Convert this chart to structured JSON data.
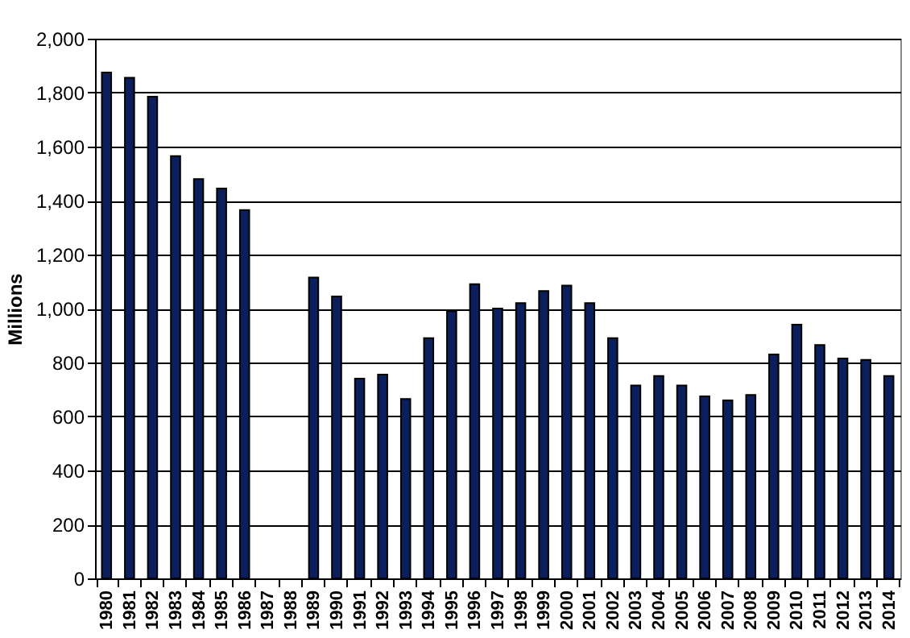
{
  "chart_data": {
    "type": "bar",
    "ylabel": "Millions",
    "categories": [
      "1980",
      "1981",
      "1982",
      "1983",
      "1984",
      "1985",
      "1986",
      "1987",
      "1988",
      "1989",
      "1990",
      "1991",
      "1992",
      "1993",
      "1994",
      "1995",
      "1996",
      "1997",
      "1998",
      "1999",
      "2000",
      "2001",
      "2002",
      "2003",
      "2004",
      "2005",
      "2006",
      "2007",
      "2008",
      "2009",
      "2010",
      "2011",
      "2012",
      "2013",
      "2014"
    ],
    "values": [
      1875,
      1855,
      1785,
      1565,
      1480,
      1445,
      1365,
      null,
      null,
      1115,
      1045,
      740,
      755,
      665,
      890,
      990,
      1090,
      1000,
      1020,
      1065,
      1085,
      1020,
      890,
      715,
      750,
      715,
      675,
      660,
      680,
      830,
      940,
      865,
      815,
      810,
      750
    ],
    "color": "#0a1f5c",
    "ylim": [
      0,
      2000
    ],
    "yticks": [
      {
        "value": 0,
        "label": "0"
      },
      {
        "value": 200,
        "label": "200"
      },
      {
        "value": 400,
        "label": "400"
      },
      {
        "value": 600,
        "label": "600"
      },
      {
        "value": 800,
        "label": "800"
      },
      {
        "value": 1000,
        "label": "1,000"
      },
      {
        "value": 1200,
        "label": "1,200"
      },
      {
        "value": 1400,
        "label": "1,400"
      },
      {
        "value": 1600,
        "label": "1,600"
      },
      {
        "value": 1800,
        "label": "1,800"
      },
      {
        "value": 2000,
        "label": "2,000"
      }
    ],
    "grid": "y"
  }
}
